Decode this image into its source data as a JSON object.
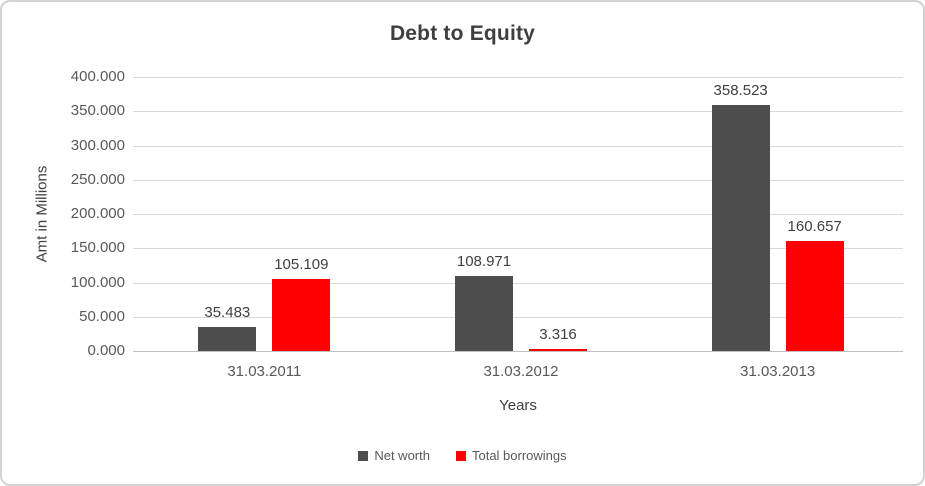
{
  "chart_data": {
    "type": "bar",
    "title": "Debt to Equity",
    "xlabel": "Years",
    "ylabel": "Amt in Millions",
    "categories": [
      "31.03.2011",
      "31.03.2012",
      "31.03.2013"
    ],
    "series": [
      {
        "name": "Net worth",
        "color": "#4d4d4d",
        "values": [
          35.483,
          108.971,
          358.523
        ]
      },
      {
        "name": "Total borrowings",
        "color": "#ff0000",
        "values": [
          105.109,
          3.316,
          160.657
        ]
      }
    ],
    "ylim": [
      0,
      400
    ],
    "y_tick_step": 50,
    "y_tick_labels": [
      "0.000",
      "50.000",
      "100.000",
      "150.000",
      "200.000",
      "250.000",
      "300.000",
      "350.000",
      "400.000"
    ],
    "grid": true,
    "data_labels": true,
    "legend_position": "bottom"
  },
  "colors": {
    "gridline": "#d9d9d9",
    "axis_line": "#bfbfbf",
    "axis_text": "#595959",
    "title_text": "#3f3f3f",
    "canvas_border": "#d2d2d2"
  }
}
